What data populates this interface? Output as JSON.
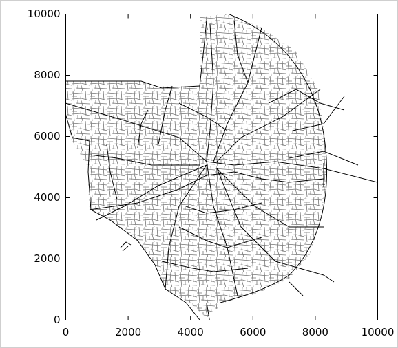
{
  "chart_data": {
    "type": "line",
    "xlim": [
      0,
      10000
    ],
    "ylim": [
      0,
      10000
    ],
    "xticks": [
      0,
      2000,
      4000,
      6000,
      8000,
      10000
    ],
    "yticks": [
      0,
      2000,
      4000,
      6000,
      8000,
      10000
    ]
  }
}
